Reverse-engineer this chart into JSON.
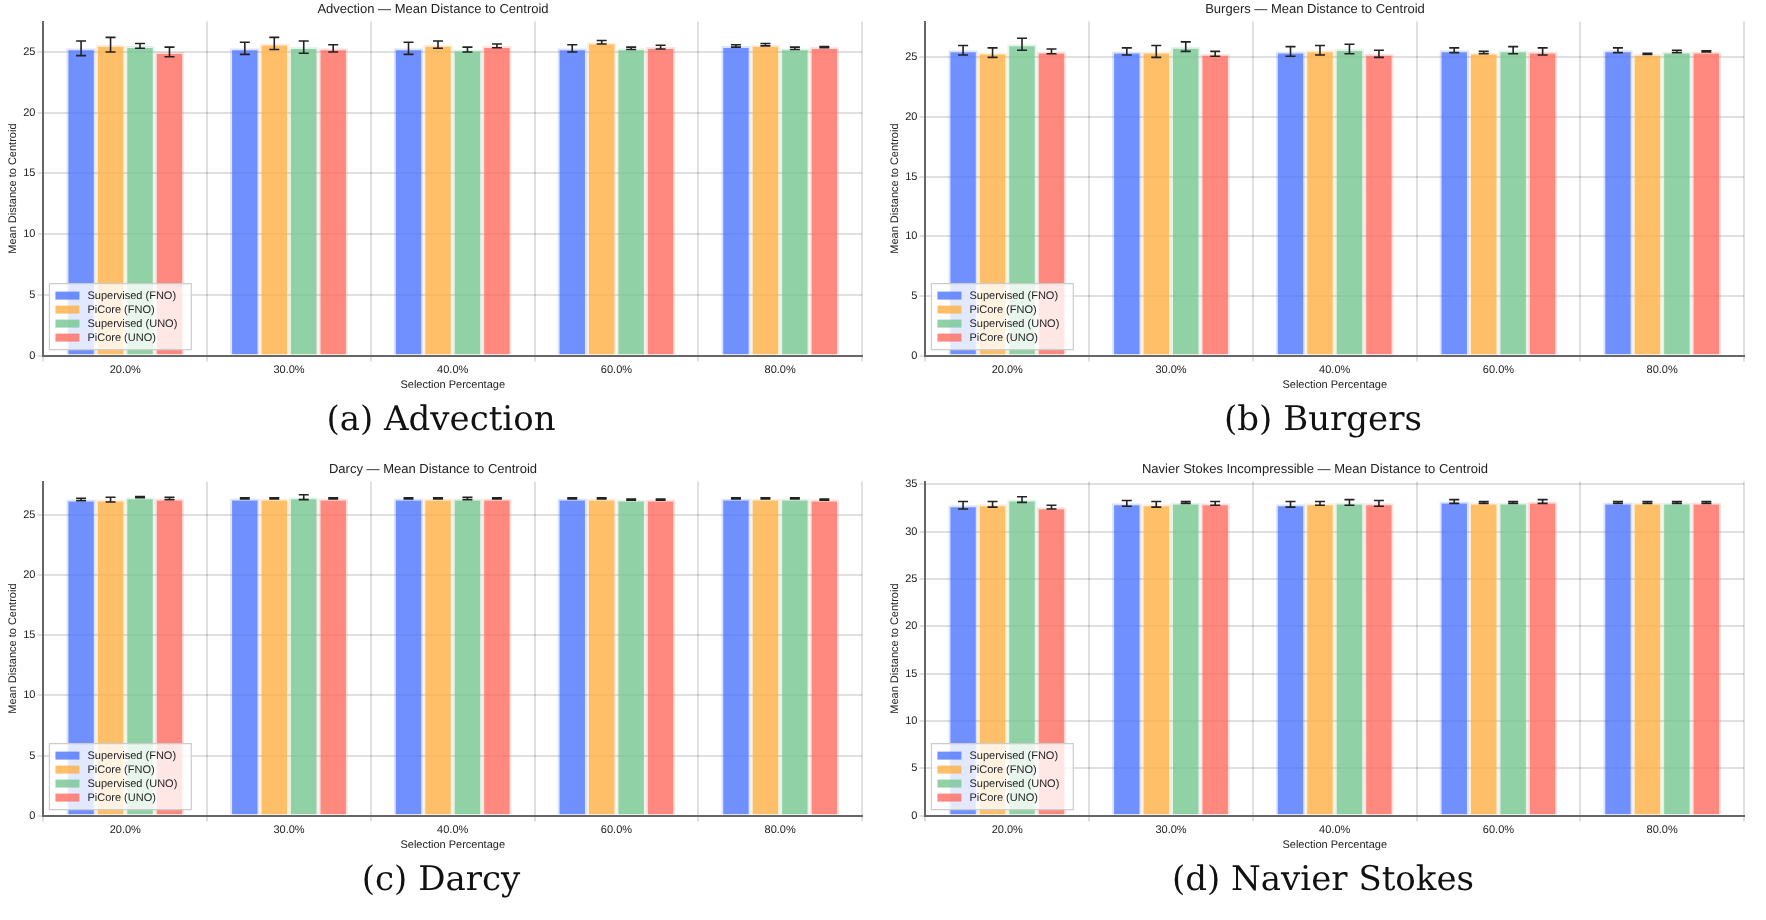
{
  "chart_data": [
    {
      "type": "bar",
      "title": "Advection — Mean Distance to Centroid",
      "xlabel": "Selection Percentage",
      "ylabel": "Mean Distance to Centroid",
      "categories": [
        "20.0%",
        "30.0%",
        "40.0%",
        "60.0%",
        "80.0%"
      ],
      "ylim": [
        0,
        27.5
      ],
      "yticks": [
        0,
        5,
        10,
        15,
        20,
        25
      ],
      "grid": true,
      "legend": "bottom left",
      "annotations": [
        "(a) Advection"
      ],
      "series": [
        {
          "name": "Supervised (FNO)",
          "color": "#4d74ff",
          "values": [
            25.3,
            25.3,
            25.3,
            25.3,
            25.5
          ],
          "errors": [
            0.6,
            0.5,
            0.5,
            0.3,
            0.1
          ]
        },
        {
          "name": "PiCore (FNO)",
          "color": "#ffae42",
          "values": [
            25.6,
            25.7,
            25.6,
            25.8,
            25.6
          ],
          "errors": [
            0.6,
            0.5,
            0.3,
            0.15,
            0.1
          ]
        },
        {
          "name": "Supervised (UNO)",
          "color": "#74c690",
          "values": [
            25.5,
            25.4,
            25.2,
            25.3,
            25.3
          ],
          "errors": [
            0.2,
            0.5,
            0.2,
            0.1,
            0.1
          ]
        },
        {
          "name": "PiCore (UNO)",
          "color": "#ff6b5e",
          "values": [
            25.0,
            25.3,
            25.5,
            25.4,
            25.4
          ],
          "errors": [
            0.4,
            0.3,
            0.15,
            0.15,
            0.05
          ]
        }
      ]
    },
    {
      "type": "bar",
      "title": "Burgers — Mean Distance to Centroid",
      "xlabel": "Selection Percentage",
      "ylabel": "Mean Distance to Centroid",
      "categories": [
        "20.0%",
        "30.0%",
        "40.0%",
        "60.0%",
        "80.0%"
      ],
      "ylim": [
        0,
        28
      ],
      "yticks": [
        0,
        5,
        10,
        15,
        20,
        25
      ],
      "grid": true,
      "legend": "bottom left",
      "annotations": [
        "(b) Burgers"
      ],
      "series": [
        {
          "name": "Supervised (FNO)",
          "color": "#4d74ff",
          "values": [
            25.6,
            25.5,
            25.5,
            25.6,
            25.6
          ],
          "errors": [
            0.4,
            0.3,
            0.4,
            0.2,
            0.2
          ]
        },
        {
          "name": "PiCore (FNO)",
          "color": "#ffae42",
          "values": [
            25.4,
            25.5,
            25.6,
            25.4,
            25.3
          ],
          "errors": [
            0.4,
            0.5,
            0.4,
            0.1,
            0.05
          ]
        },
        {
          "name": "Supervised (UNO)",
          "color": "#74c690",
          "values": [
            26.1,
            25.9,
            25.7,
            25.6,
            25.5
          ],
          "errors": [
            0.5,
            0.4,
            0.4,
            0.3,
            0.1
          ]
        },
        {
          "name": "PiCore (UNO)",
          "color": "#ff6b5e",
          "values": [
            25.5,
            25.3,
            25.3,
            25.5,
            25.5
          ],
          "errors": [
            0.2,
            0.2,
            0.3,
            0.3,
            0.05
          ]
        }
      ]
    },
    {
      "type": "bar",
      "title": "Darcy — Mean Distance to Centroid",
      "xlabel": "Selection Percentage",
      "ylabel": "Mean Distance to Centroid",
      "categories": [
        "20.0%",
        "30.0%",
        "40.0%",
        "60.0%",
        "80.0%"
      ],
      "ylim": [
        0,
        27.8
      ],
      "yticks": [
        0,
        5,
        10,
        15,
        20,
        25
      ],
      "grid": true,
      "legend": "bottom left",
      "annotations": [
        "(c) Darcy"
      ],
      "series": [
        {
          "name": "Supervised (FNO)",
          "color": "#4d74ff",
          "values": [
            26.3,
            26.4,
            26.4,
            26.4,
            26.4
          ],
          "errors": [
            0.1,
            0.05,
            0.05,
            0.05,
            0.05
          ]
        },
        {
          "name": "PiCore (FNO)",
          "color": "#ffae42",
          "values": [
            26.3,
            26.4,
            26.4,
            26.4,
            26.4
          ],
          "errors": [
            0.2,
            0.05,
            0.05,
            0.05,
            0.05
          ]
        },
        {
          "name": "Supervised (UNO)",
          "color": "#74c690",
          "values": [
            26.5,
            26.5,
            26.4,
            26.3,
            26.4
          ],
          "errors": [
            0.05,
            0.2,
            0.1,
            0.05,
            0.05
          ]
        },
        {
          "name": "PiCore (UNO)",
          "color": "#ff6b5e",
          "values": [
            26.4,
            26.4,
            26.4,
            26.3,
            26.3
          ],
          "errors": [
            0.1,
            0.05,
            0.05,
            0.05,
            0.05
          ]
        }
      ]
    },
    {
      "type": "bar",
      "title": "Navier Stokes Incompressible — Mean Distance to Centroid",
      "xlabel": "Selection Percentage",
      "ylabel": "Mean Distance to Centroid",
      "categories": [
        "20.0%",
        "30.0%",
        "40.0%",
        "60.0%",
        "80.0%"
      ],
      "ylim": [
        0,
        35.3
      ],
      "yticks": [
        0,
        5,
        10,
        15,
        20,
        25,
        30,
        35
      ],
      "grid": true,
      "legend": "bottom left",
      "annotations": [
        "(d) Navier Stokes"
      ],
      "series": [
        {
          "name": "Supervised (FNO)",
          "color": "#4d74ff",
          "values": [
            32.8,
            33.0,
            32.9,
            33.2,
            33.1
          ],
          "errors": [
            0.4,
            0.3,
            0.3,
            0.2,
            0.1
          ]
        },
        {
          "name": "PiCore (FNO)",
          "color": "#ffae42",
          "values": [
            32.9,
            32.9,
            33.0,
            33.1,
            33.1
          ],
          "errors": [
            0.3,
            0.3,
            0.2,
            0.1,
            0.1
          ]
        },
        {
          "name": "Supervised (UNO)",
          "color": "#74c690",
          "values": [
            33.4,
            33.1,
            33.1,
            33.1,
            33.1
          ],
          "errors": [
            0.3,
            0.1,
            0.3,
            0.1,
            0.1
          ]
        },
        {
          "name": "PiCore (UNO)",
          "color": "#ff6b5e",
          "values": [
            32.6,
            33.0,
            33.0,
            33.2,
            33.1
          ],
          "errors": [
            0.2,
            0.2,
            0.3,
            0.2,
            0.1
          ]
        }
      ]
    }
  ]
}
